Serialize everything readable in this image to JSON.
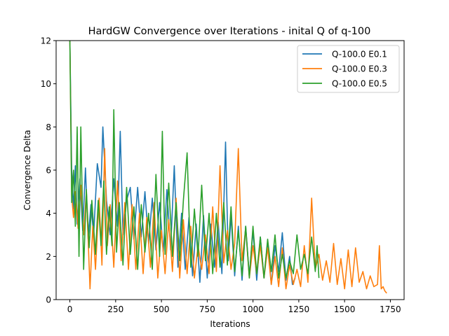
{
  "chart_data": {
    "type": "line",
    "title": "HardGW Convergence over Iterations - inital Q of q-100",
    "xlabel": "Iterations",
    "ylabel": "Convergence Delta",
    "xlim": [
      -75,
      1825
    ],
    "ylim": [
      0,
      12
    ],
    "xticks": [
      0,
      250,
      500,
      750,
      1000,
      1250,
      1500,
      1750
    ],
    "yticks": [
      0,
      2,
      4,
      6,
      8,
      10,
      12
    ],
    "grid": false,
    "legend_position": "top-right",
    "series": [
      {
        "name": "Q-100.0 E0.1",
        "color": "#1f77b4",
        "points": [
          [
            0,
            12
          ],
          [
            10,
            6.0
          ],
          [
            20,
            4.2
          ],
          [
            30,
            6.2
          ],
          [
            40,
            3.5
          ],
          [
            55,
            5.6
          ],
          [
            70,
            3.2
          ],
          [
            85,
            6.1
          ],
          [
            100,
            2.8
          ],
          [
            115,
            4.4
          ],
          [
            130,
            3.0
          ],
          [
            150,
            6.3
          ],
          [
            170,
            5.2
          ],
          [
            180,
            8.0
          ],
          [
            200,
            4.6
          ],
          [
            220,
            3.0
          ],
          [
            240,
            5.6
          ],
          [
            260,
            3.4
          ],
          [
            275,
            7.8
          ],
          [
            290,
            3.0
          ],
          [
            310,
            4.6
          ],
          [
            330,
            5.2
          ],
          [
            350,
            2.8
          ],
          [
            370,
            5.2
          ],
          [
            390,
            2.9
          ],
          [
            410,
            5.0
          ],
          [
            430,
            2.6
          ],
          [
            450,
            4.7
          ],
          [
            470,
            2.3
          ],
          [
            490,
            4.5
          ],
          [
            510,
            2.2
          ],
          [
            530,
            5.1
          ],
          [
            550,
            2.3
          ],
          [
            570,
            6.2
          ],
          [
            590,
            1.5
          ],
          [
            610,
            4.0
          ],
          [
            630,
            1.4
          ],
          [
            650,
            3.8
          ],
          [
            670,
            1.1
          ],
          [
            690,
            3.5
          ],
          [
            710,
            0.8
          ],
          [
            730,
            3.9
          ],
          [
            750,
            1.0
          ],
          [
            770,
            3.5
          ],
          [
            790,
            1.5
          ],
          [
            810,
            3.6
          ],
          [
            830,
            1.2
          ],
          [
            850,
            7.3
          ],
          [
            865,
            1.8
          ],
          [
            880,
            3.9
          ],
          [
            900,
            1.1
          ],
          [
            920,
            3.4
          ],
          [
            940,
            0.9
          ],
          [
            960,
            3.4
          ],
          [
            980,
            1.1
          ],
          [
            1000,
            3.2
          ],
          [
            1020,
            0.9
          ],
          [
            1040,
            2.9
          ],
          [
            1060,
            1.0
          ],
          [
            1080,
            2.7
          ],
          [
            1100,
            0.7
          ],
          [
            1120,
            2.5
          ],
          [
            1140,
            1.3
          ],
          [
            1160,
            3.1
          ],
          [
            1180,
            0.9
          ],
          [
            1200,
            2.0
          ],
          [
            1215,
            0.7
          ],
          [
            1230,
            1.0
          ]
        ]
      },
      {
        "name": "Q-100.0 E0.3",
        "color": "#ff7f0e",
        "points": [
          [
            0,
            12
          ],
          [
            10,
            4.8
          ],
          [
            20,
            3.8
          ],
          [
            30,
            5.0
          ],
          [
            45,
            3.3
          ],
          [
            60,
            5.3
          ],
          [
            75,
            3.0
          ],
          [
            90,
            5.0
          ],
          [
            110,
            0.5
          ],
          [
            125,
            3.4
          ],
          [
            140,
            1.4
          ],
          [
            160,
            4.7
          ],
          [
            175,
            1.6
          ],
          [
            190,
            7.0
          ],
          [
            205,
            2.5
          ],
          [
            220,
            4.4
          ],
          [
            240,
            1.5
          ],
          [
            260,
            5.5
          ],
          [
            280,
            1.8
          ],
          [
            300,
            4.5
          ],
          [
            320,
            1.4
          ],
          [
            340,
            4.4
          ],
          [
            360,
            1.4
          ],
          [
            380,
            4.0
          ],
          [
            400,
            1.2
          ],
          [
            420,
            3.8
          ],
          [
            440,
            1.5
          ],
          [
            460,
            4.5
          ],
          [
            480,
            1.0
          ],
          [
            500,
            3.2
          ],
          [
            520,
            1.2
          ],
          [
            540,
            3.7
          ],
          [
            560,
            1.3
          ],
          [
            580,
            4.7
          ],
          [
            600,
            1.0
          ],
          [
            620,
            3.7
          ],
          [
            640,
            1.2
          ],
          [
            660,
            3.4
          ],
          [
            680,
            1.0
          ],
          [
            700,
            2.5
          ],
          [
            720,
            1.4
          ],
          [
            740,
            3.0
          ],
          [
            760,
            1.2
          ],
          [
            780,
            4.3
          ],
          [
            800,
            1.3
          ],
          [
            820,
            6.2
          ],
          [
            840,
            1.7
          ],
          [
            860,
            3.2
          ],
          [
            880,
            1.4
          ],
          [
            900,
            2.6
          ],
          [
            920,
            7.0
          ],
          [
            940,
            1.8
          ],
          [
            960,
            3.3
          ],
          [
            980,
            1.0
          ],
          [
            1000,
            2.5
          ],
          [
            1020,
            1.2
          ],
          [
            1040,
            2.5
          ],
          [
            1060,
            1.0
          ],
          [
            1080,
            2.4
          ],
          [
            1100,
            0.7
          ],
          [
            1120,
            2.0
          ],
          [
            1140,
            0.6
          ],
          [
            1160,
            2.4
          ],
          [
            1180,
            0.5
          ],
          [
            1200,
            1.6
          ],
          [
            1220,
            0.7
          ],
          [
            1240,
            1.4
          ],
          [
            1260,
            0.6
          ],
          [
            1280,
            2.5
          ],
          [
            1300,
            0.8
          ],
          [
            1320,
            4.7
          ],
          [
            1340,
            1.4
          ],
          [
            1360,
            2.1
          ],
          [
            1380,
            0.9
          ],
          [
            1400,
            1.8
          ],
          [
            1420,
            0.8
          ],
          [
            1440,
            2.6
          ],
          [
            1460,
            0.7
          ],
          [
            1480,
            1.9
          ],
          [
            1500,
            0.5
          ],
          [
            1520,
            2.3
          ],
          [
            1540,
            0.6
          ],
          [
            1560,
            2.4
          ],
          [
            1580,
            0.8
          ],
          [
            1600,
            1.3
          ],
          [
            1620,
            0.5
          ],
          [
            1640,
            1.1
          ],
          [
            1660,
            0.6
          ],
          [
            1680,
            0.7
          ],
          [
            1690,
            2.5
          ],
          [
            1700,
            0.5
          ],
          [
            1710,
            0.6
          ],
          [
            1720,
            0.4
          ],
          [
            1730,
            0.3
          ]
        ]
      },
      {
        "name": "Q-100.0 E0.5",
        "color": "#2ca02c",
        "points": [
          [
            0,
            12
          ],
          [
            10,
            4.5
          ],
          [
            20,
            6.0
          ],
          [
            30,
            3.4
          ],
          [
            40,
            8.0
          ],
          [
            50,
            2.0
          ],
          [
            60,
            8.0
          ],
          [
            75,
            1.4
          ],
          [
            90,
            5.1
          ],
          [
            105,
            2.4
          ],
          [
            120,
            4.6
          ],
          [
            140,
            2.1
          ],
          [
            155,
            4.6
          ],
          [
            170,
            2.5
          ],
          [
            185,
            5.5
          ],
          [
            200,
            2.1
          ],
          [
            215,
            4.3
          ],
          [
            230,
            2.5
          ],
          [
            240,
            8.8
          ],
          [
            255,
            2.2
          ],
          [
            270,
            4.5
          ],
          [
            290,
            1.6
          ],
          [
            310,
            5.2
          ],
          [
            330,
            2.1
          ],
          [
            350,
            4.3
          ],
          [
            370,
            1.4
          ],
          [
            390,
            4.4
          ],
          [
            410,
            2.2
          ],
          [
            430,
            4.0
          ],
          [
            450,
            1.4
          ],
          [
            470,
            5.8
          ],
          [
            490,
            2.0
          ],
          [
            505,
            7.8
          ],
          [
            520,
            2.1
          ],
          [
            540,
            5.4
          ],
          [
            560,
            2.0
          ],
          [
            580,
            4.5
          ],
          [
            600,
            1.8
          ],
          [
            620,
            4.6
          ],
          [
            640,
            6.8
          ],
          [
            660,
            1.5
          ],
          [
            680,
            4.2
          ],
          [
            700,
            2.0
          ],
          [
            720,
            5.3
          ],
          [
            740,
            1.8
          ],
          [
            760,
            4.0
          ],
          [
            780,
            1.2
          ],
          [
            800,
            4.0
          ],
          [
            820,
            1.5
          ],
          [
            840,
            4.5
          ],
          [
            860,
            1.6
          ],
          [
            880,
            4.3
          ],
          [
            900,
            1.3
          ],
          [
            920,
            3.2
          ],
          [
            940,
            1.1
          ],
          [
            960,
            3.4
          ],
          [
            980,
            1.0
          ],
          [
            1000,
            3.4
          ],
          [
            1020,
            1.2
          ],
          [
            1040,
            2.9
          ],
          [
            1060,
            1.0
          ],
          [
            1080,
            2.8
          ],
          [
            1100,
            1.3
          ],
          [
            1120,
            3.0
          ],
          [
            1140,
            1.0
          ],
          [
            1160,
            2.1
          ],
          [
            1180,
            1.0
          ],
          [
            1200,
            1.8
          ],
          [
            1220,
            1.2
          ],
          [
            1240,
            3.0
          ],
          [
            1260,
            1.4
          ],
          [
            1280,
            2.1
          ],
          [
            1300,
            1.2
          ],
          [
            1320,
            2.9
          ],
          [
            1340,
            1.3
          ],
          [
            1350,
            2.5
          ],
          [
            1360,
            1.0
          ]
        ]
      }
    ]
  }
}
